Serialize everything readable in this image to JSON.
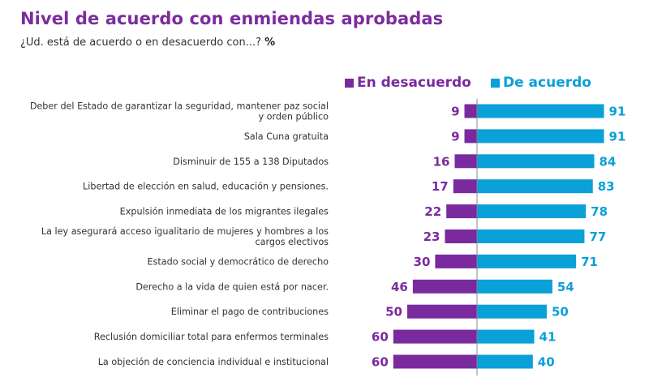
{
  "header": {
    "title": "Nivel de acuerdo con enmiendas aprobadas",
    "subtitle": "¿Ud. está de acuerdo o en desacuerdo con...?",
    "subtitle_unit": "%"
  },
  "colors": {
    "title": "#7b2c9f",
    "desacuerdo": "#7a2a9e",
    "acuerdo": "#0aa0d8",
    "axis": "#888888"
  },
  "chart_data": {
    "type": "bar",
    "orientation": "horizontal-diverging",
    "title": "Nivel de acuerdo con enmiendas aprobadas",
    "subtitle": "¿Ud. está de acuerdo o en desacuerdo con...? %",
    "xlabel": "",
    "ylabel": "",
    "grid": false,
    "legend_position": "top-right",
    "categories": [
      [
        "Deber del Estado de garantizar la seguridad, mantener paz social",
        "y orden público"
      ],
      [
        "Sala Cuna gratuita"
      ],
      [
        "Disminuir de 155 a 138 Diputados"
      ],
      [
        "Libertad de elección en salud, educación y pensiones."
      ],
      [
        "Expulsión inmediata de los migrantes ilegales"
      ],
      [
        "La ley asegurará acceso igualitario de mujeres y hombres a los",
        "cargos electivos"
      ],
      [
        "Estado social y democrático de derecho"
      ],
      [
        "Derecho a la vida de quien está por nacer."
      ],
      [
        "Eliminar el pago de contribuciones"
      ],
      [
        "Reclusión domiciliar total para enfermos terminales"
      ],
      [
        "La objeción de conciencia individual e institucional"
      ]
    ],
    "series": [
      {
        "name": "En desacuerdo",
        "side": "left",
        "values": [
          9,
          9,
          16,
          17,
          22,
          23,
          30,
          46,
          50,
          60,
          60
        ]
      },
      {
        "name": "De acuerdo",
        "side": "right",
        "values": [
          91,
          91,
          84,
          83,
          78,
          77,
          71,
          54,
          50,
          41,
          40
        ]
      }
    ],
    "xlim": [
      -100,
      100
    ]
  }
}
